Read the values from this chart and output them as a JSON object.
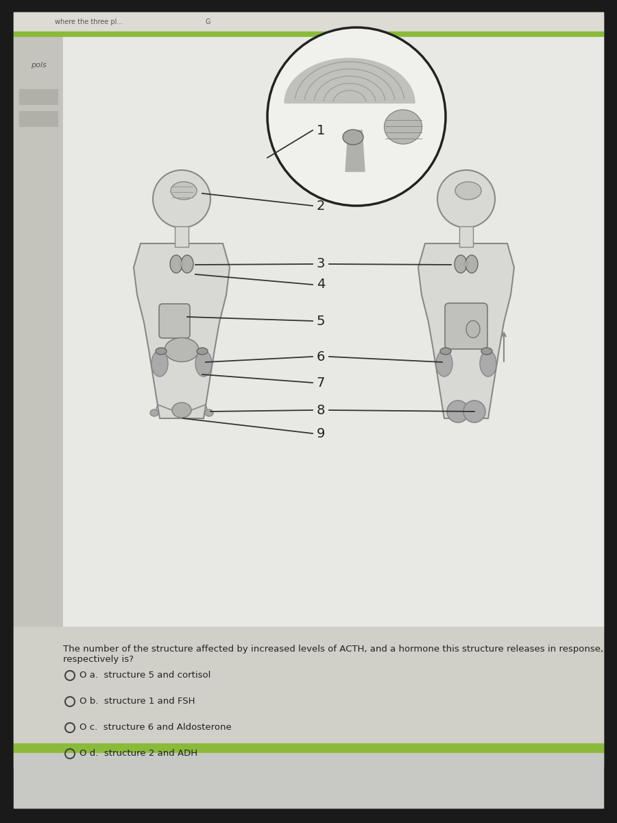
{
  "bg_dark": "#1a1a1a",
  "bg_app": "#d0d0c8",
  "bg_content": "#e8e8e4",
  "bg_sidebar": "#c4c4bc",
  "bg_topbar": "#dcdcd4",
  "green_bar": "#8aba3a",
  "question_text": "The number of the structure affected by increased levels of ACTH, and a hormone this structure releases in response, respectively is?",
  "options": [
    {
      "label": "O a.",
      "text": "structure 5 and cortisol"
    },
    {
      "label": "O b.",
      "text": "structure 1 and FSH"
    },
    {
      "label": "O c.",
      "text": "structure 6 and Aldosterone"
    },
    {
      "label": "O d.",
      "text": "structure 2 and ADH"
    }
  ],
  "numbers": [
    "1",
    "2",
    "3",
    "4",
    "5",
    "6",
    "7",
    "8",
    "9"
  ],
  "sidebar_label": "pols",
  "topbar_text": "where the three pl...",
  "line_color": "#333333",
  "body_color": "#d8d8d4",
  "organ_color": "#aaaaaa",
  "organ_dark": "#888888",
  "text_color": "#222222"
}
